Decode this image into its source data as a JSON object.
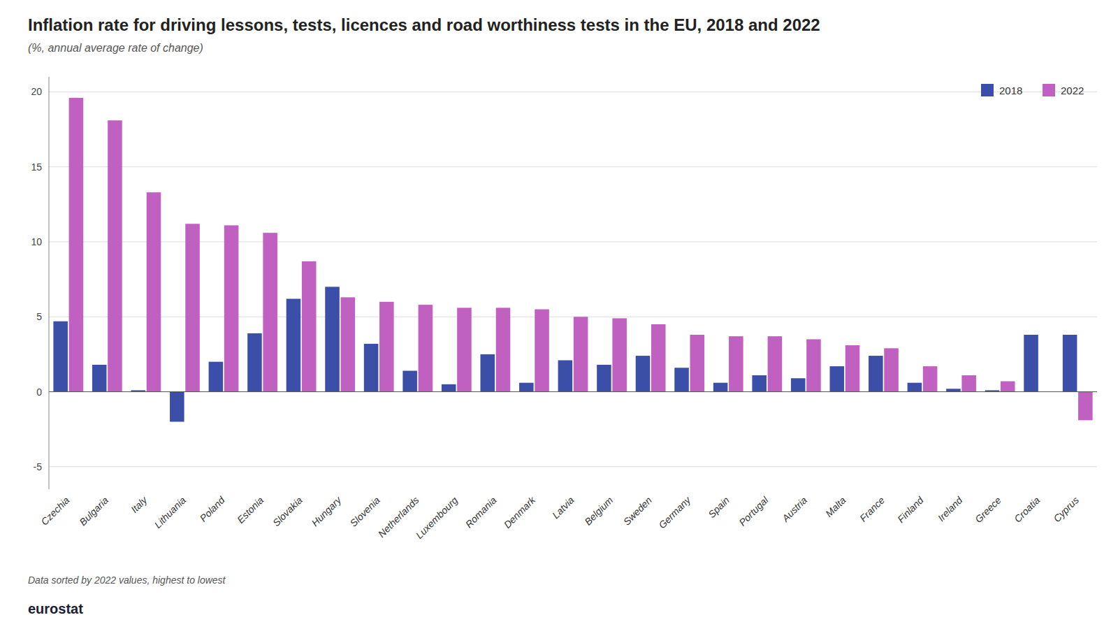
{
  "chart_data": {
    "type": "bar",
    "title": "Inflation rate for driving lessons, tests, licences and road worthiness tests in the EU, 2018 and 2022",
    "subtitle": "(%, annual average rate of change)",
    "annotation": "Data sorted by 2022 values, highest to lowest",
    "source": "eurostat",
    "categories": [
      "Czechia",
      "Bulgaria",
      "Italy",
      "Lithuania",
      "Poland",
      "Estonia",
      "Slovakia",
      "Hungary",
      "Slovenia",
      "Netherlands",
      "Luxembourg",
      "Romania",
      "Denmark",
      "Latvia",
      "Belgium",
      "Sweden",
      "Germany",
      "Spain",
      "Portugal",
      "Austria",
      "Malta",
      "France",
      "Finland",
      "Ireland",
      "Greece",
      "Croatia",
      "Cyprus"
    ],
    "series": [
      {
        "name": "2018",
        "color": "#3b4fa8",
        "values": [
          4.7,
          1.8,
          0.1,
          -2.0,
          2.0,
          3.9,
          6.2,
          7.0,
          3.2,
          1.4,
          0.5,
          2.5,
          0.6,
          2.1,
          1.8,
          2.4,
          1.6,
          0.6,
          1.1,
          0.9,
          1.7,
          2.4,
          0.6,
          0.2,
          0.1,
          3.8,
          3.8
        ]
      },
      {
        "name": "2022",
        "color": "#c060c0",
        "values": [
          19.6,
          18.1,
          13.3,
          11.2,
          11.1,
          10.6,
          8.7,
          6.3,
          6.0,
          5.8,
          5.6,
          5.6,
          5.5,
          5.0,
          4.9,
          4.5,
          3.8,
          3.7,
          3.7,
          3.5,
          3.1,
          2.9,
          1.7,
          1.1,
          0.7,
          0.0,
          -1.9
        ]
      }
    ],
    "ylim": [
      -6.5,
      21
    ],
    "yticks": [
      -5,
      0,
      5,
      10,
      15,
      20
    ],
    "grid": true,
    "legend": "upper right"
  }
}
